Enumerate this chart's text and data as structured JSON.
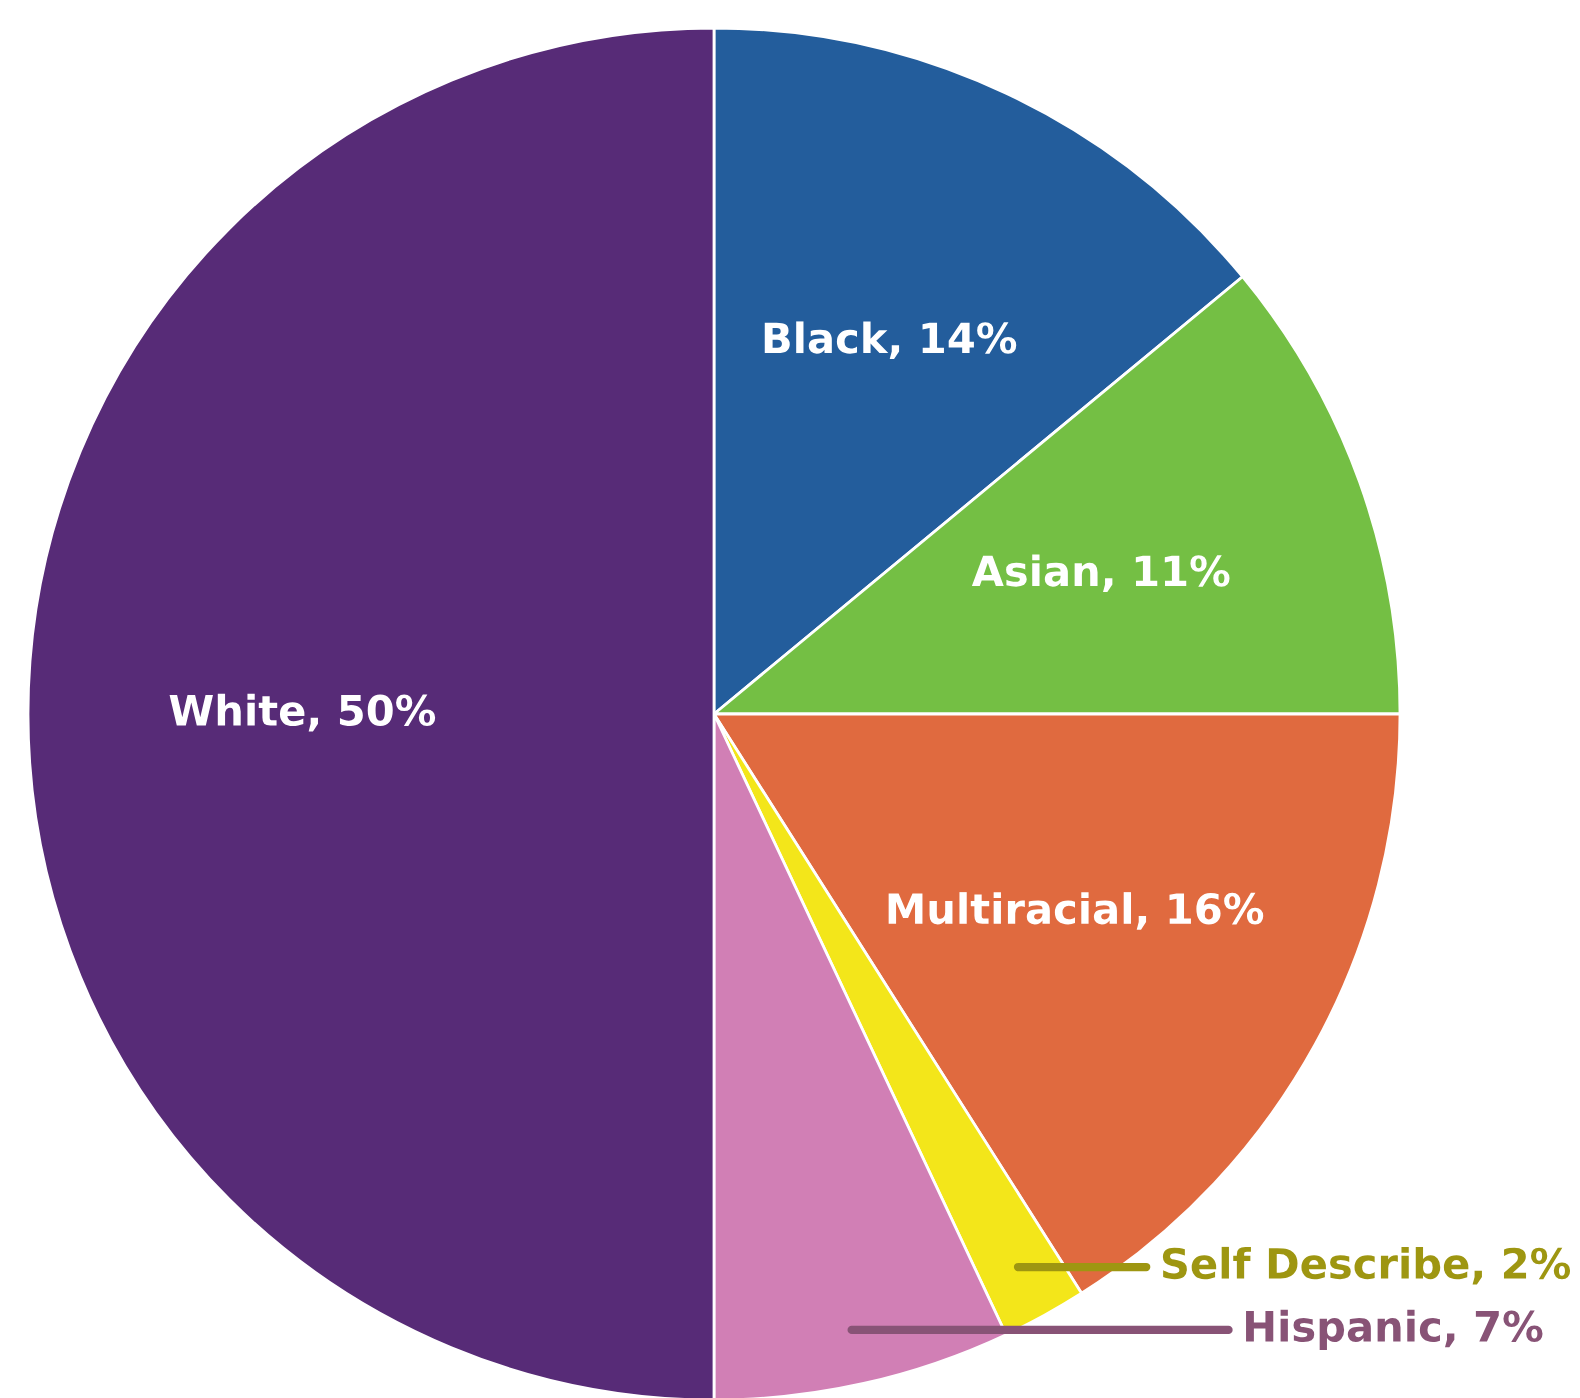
{
  "chart_data": {
    "type": "pie",
    "categories": [
      "Black",
      "Asian",
      "Multiracial",
      "Self Describe",
      "Hispanic",
      "White"
    ],
    "values": [
      14,
      11,
      16,
      2,
      7,
      50
    ],
    "value_labels": [
      "14%",
      "11%",
      "16%",
      "2%",
      "7%",
      "50%"
    ],
    "colors": [
      "#235d9c",
      "#74bf44",
      "#e06a3f",
      "#f3e61a",
      "#d17fb5",
      "#572b77"
    ],
    "legend": false
  }
}
